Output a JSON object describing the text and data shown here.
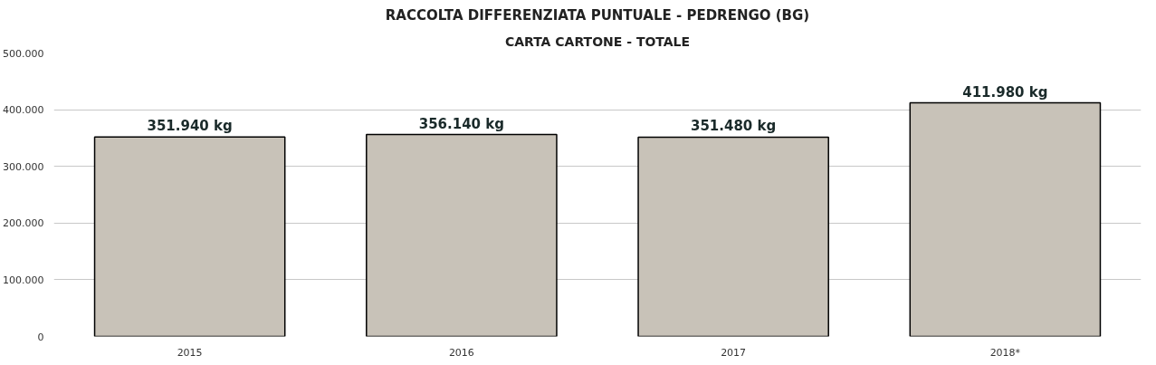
{
  "chart_data": {
    "type": "bar",
    "title": "RACCOLTA DIFFERENZIATA PUNTUALE - PEDRENGO (BG)",
    "subtitle": "CARTA CARTONE - TOTALE",
    "categories": [
      "2015",
      "2016",
      "2017",
      "2018*"
    ],
    "values": [
      351940,
      356140,
      351480,
      411980
    ],
    "value_labels": [
      "351.940 kg",
      "356.140 kg",
      "351.480 kg",
      "411.980 kg"
    ],
    "color": "#c8c2b8",
    "ylim": [
      0,
      500000
    ],
    "yticks": [
      {
        "value": 0,
        "label": "0"
      },
      {
        "value": 100000,
        "label": "100.000"
      },
      {
        "value": 200000,
        "label": "200.000"
      },
      {
        "value": 300000,
        "label": "300.000"
      },
      {
        "value": 400000,
        "label": "400.000"
      },
      {
        "value": 500000,
        "label": "500.000"
      }
    ],
    "grid": "y"
  }
}
